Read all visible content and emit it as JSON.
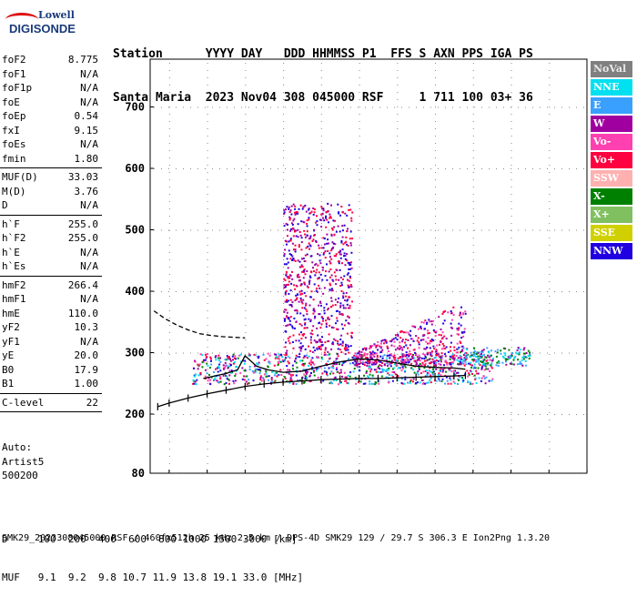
{
  "logo": {
    "line1": "Lowell",
    "line2": "DIGISONDE"
  },
  "header": {
    "line1": "Station      YYYY DAY   DDD HHMMSS P1  FFS S AXN PPS IGA PS",
    "line2": "Santa Maria  2023 Nov04 308 045000 RSF     1 711 100 03+ 36"
  },
  "params": {
    "group1": [
      {
        "label": "foF2",
        "value": "8.775"
      },
      {
        "label": "foF1",
        "value": "N/A"
      },
      {
        "label": "foF1p",
        "value": "N/A"
      },
      {
        "label": "foE",
        "value": "N/A"
      },
      {
        "label": "foEp",
        "value": "0.54"
      },
      {
        "label": "fxI",
        "value": "9.15"
      },
      {
        "label": "foEs",
        "value": "N/A"
      },
      {
        "label": "fmin",
        "value": "1.80"
      }
    ],
    "group2": [
      {
        "label": "MUF(D)",
        "value": "33.03"
      },
      {
        "label": "M(D)",
        "value": "3.76"
      },
      {
        "label": "D",
        "value": "N/A"
      }
    ],
    "group3": [
      {
        "label": "h`F",
        "value": "255.0"
      },
      {
        "label": "h`F2",
        "value": "255.0"
      },
      {
        "label": "h`E",
        "value": "N/A"
      },
      {
        "label": "h`Es",
        "value": "N/A"
      }
    ],
    "group4": [
      {
        "label": "hmF2",
        "value": "266.4"
      },
      {
        "label": "hmF1",
        "value": "N/A"
      },
      {
        "label": "hmE",
        "value": "110.0"
      },
      {
        "label": "yF2",
        "value": "10.3"
      },
      {
        "label": "yF1",
        "value": "N/A"
      },
      {
        "label": "yE",
        "value": "20.0"
      },
      {
        "label": "B0",
        "value": "17.9"
      },
      {
        "label": "B1",
        "value": "1.00"
      }
    ],
    "group5": [
      {
        "label": "C-level",
        "value": "22"
      }
    ]
  },
  "auto": {
    "line1": "Auto:",
    "line2": "Artist5",
    "line3": "500200"
  },
  "legend": [
    {
      "label": "NoVal",
      "bg": "#808080",
      "fg": "#e8e8e8"
    },
    {
      "label": "NNE",
      "bg": "#00e0f0",
      "fg": "#ffffff"
    },
    {
      "label": "E",
      "bg": "#3aa0ff",
      "fg": "#ffffff"
    },
    {
      "label": "W",
      "bg": "#a000a0",
      "fg": "#ffffff"
    },
    {
      "label": "Vo-",
      "bg": "#ff40b0",
      "fg": "#ffffff"
    },
    {
      "label": "Vo+",
      "bg": "#ff0040",
      "fg": "#ffffff"
    },
    {
      "label": "SSW",
      "bg": "#ffb0b0",
      "fg": "#ffffff"
    },
    {
      "label": "X-",
      "bg": "#008000",
      "fg": "#ffffff"
    },
    {
      "label": "X+",
      "bg": "#80c060",
      "fg": "#ffffff"
    },
    {
      "label": "SSE",
      "bg": "#d0d000",
      "fg": "#ffffff"
    },
    {
      "label": "NNW",
      "bg": "#2000e0",
      "fg": "#ffffff"
    }
  ],
  "footer": {
    "line1": "D     100  200  400  600  800 1000 1500 3000 [km]",
    "line2": "MUF   9.1  9.2  9.8 10.7 11.9 13.8 19.1 33.0 [MHz]",
    "line3": "SMK29_2023308045000.RSF / 460fx512h 25 kHz 2.5 km / DPS-4D SMK29 129 / 29.7 S 306.3 E Ion2Png 1.3.20"
  },
  "chart_data": {
    "type": "scatter",
    "xlim": [
      0.5,
      12.0
    ],
    "ylim": [
      80,
      900
    ],
    "x_ticks": [
      1,
      2,
      3,
      4,
      5,
      6,
      7,
      8,
      9,
      10,
      11,
      12
    ],
    "y_ticks": [
      80,
      200,
      300,
      400,
      500,
      600,
      700,
      800,
      900
    ],
    "grid": true,
    "series": [
      {
        "name": "Profile",
        "color": "#000000",
        "style": "solid-with-ticks",
        "x": [
          0.7,
          1.0,
          1.5,
          2.0,
          2.5,
          3.0,
          3.5,
          4.0,
          4.5,
          5.0,
          5.5,
          6.0,
          6.5,
          7.0,
          7.5,
          8.0,
          8.5,
          8.8
        ],
        "y": [
          212,
          218,
          226,
          233,
          239,
          245,
          249,
          252,
          254,
          256,
          257,
          258,
          258,
          259,
          260,
          261,
          262,
          263
        ]
      },
      {
        "name": "O-trace",
        "color": "#000000",
        "style": "solid",
        "x": [
          1.9,
          2.2,
          2.5,
          2.8,
          3.0,
          3.3,
          3.6,
          4.0,
          4.5,
          5.0,
          5.5,
          6.0,
          6.5,
          7.0,
          7.5,
          8.0,
          8.5,
          8.8
        ],
        "y": [
          258,
          262,
          266,
          272,
          295,
          278,
          272,
          268,
          270,
          278,
          285,
          290,
          288,
          283,
          278,
          276,
          275,
          273
        ]
      },
      {
        "name": "Extrapolation",
        "color": "#000000",
        "style": "dashed",
        "x": [
          0.6,
          0.9,
          1.2,
          1.5,
          1.8,
          2.1,
          2.4,
          2.7,
          3.0
        ],
        "y": [
          368,
          355,
          345,
          337,
          331,
          328,
          326,
          325,
          324
        ]
      }
    ],
    "echo_clusters": [
      {
        "name": "F-layer main",
        "x": [
          1.6,
          9.5
        ],
        "y": [
          250,
          300
        ],
        "colors": [
          "#ff0040",
          "#2000e0",
          "#a000a0",
          "#00e0f0",
          "#3aa0ff",
          "#ff40b0",
          "#008000"
        ]
      },
      {
        "name": "F-layer upper",
        "x": [
          5.8,
          8.8
        ],
        "y": [
          280,
          385
        ],
        "colors": [
          "#ff0040",
          "#a000a0",
          "#2000e0",
          "#ff40b0"
        ]
      },
      {
        "name": "Multi-hop",
        "x": [
          4.0,
          5.8
        ],
        "y": [
          300,
          545
        ],
        "colors": [
          "#2000e0",
          "#a000a0",
          "#ff0040"
        ]
      },
      {
        "name": "Tail",
        "x": [
          8.5,
          10.5
        ],
        "y": [
          280,
          310
        ],
        "colors": [
          "#3aa0ff",
          "#00e0f0",
          "#a000a0",
          "#008000"
        ]
      }
    ]
  }
}
